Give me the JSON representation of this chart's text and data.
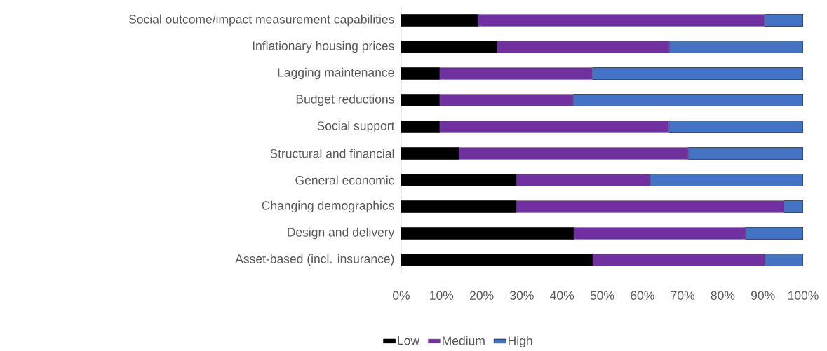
{
  "chart_data": {
    "type": "bar",
    "orientation": "horizontal",
    "stacked": true,
    "legend": "bottom",
    "grid": false,
    "categories": [
      "Social outcome/impact measurement capabilities",
      "Inflationary housing prices",
      "Lagging maintenance",
      "Budget reductions",
      "Social support",
      "Structural and financial",
      "General economic",
      "Changing demographics",
      "Design and delivery",
      "Asset-based (incl. insurance)"
    ],
    "series": [
      {
        "name": "Low",
        "color": "#000000",
        "values": [
          19.0,
          23.8,
          9.5,
          9.5,
          9.5,
          14.3,
          28.6,
          28.6,
          42.9,
          47.6
        ]
      },
      {
        "name": "Medium",
        "color": "#7030a0",
        "values": [
          71.4,
          42.9,
          38.1,
          33.3,
          57.1,
          57.1,
          33.3,
          66.6,
          42.8,
          42.9
        ]
      },
      {
        "name": "High",
        "color": "#4472c4",
        "values": [
          9.6,
          33.3,
          52.4,
          57.2,
          33.4,
          28.6,
          38.1,
          4.8,
          14.3,
          9.5
        ]
      }
    ],
    "xlim": [
      0,
      100
    ],
    "xticks": [
      {
        "value": 0,
        "label": "0%"
      },
      {
        "value": 10,
        "label": "10%"
      },
      {
        "value": 20,
        "label": "20%"
      },
      {
        "value": 30,
        "label": "30%"
      },
      {
        "value": 40,
        "label": "40%"
      },
      {
        "value": 50,
        "label": "50%"
      },
      {
        "value": 60,
        "label": "60%"
      },
      {
        "value": 70,
        "label": "70%"
      },
      {
        "value": 80,
        "label": "80%"
      },
      {
        "value": 90,
        "label": "90%"
      },
      {
        "value": 100,
        "label": "100%"
      }
    ]
  }
}
